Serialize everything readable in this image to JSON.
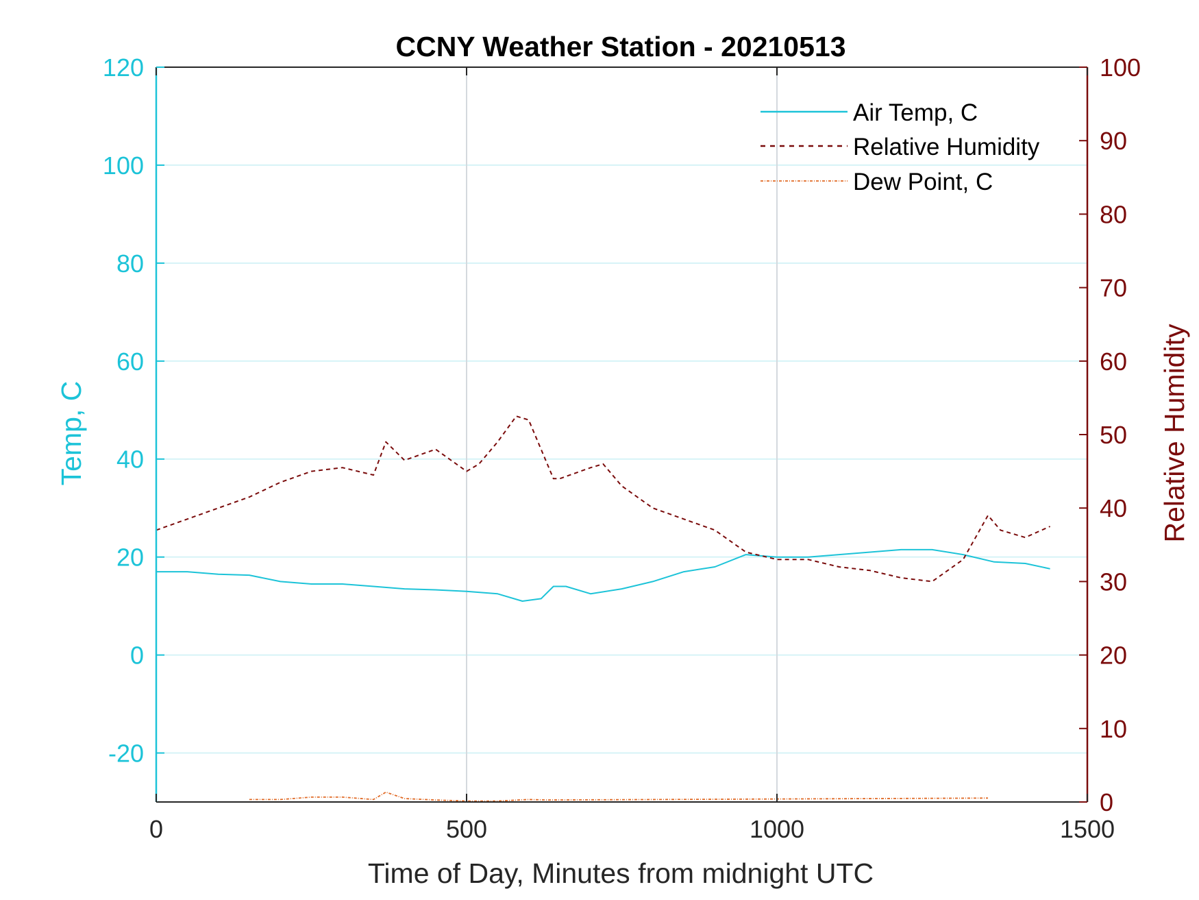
{
  "chart_data": {
    "type": "line",
    "title": "CCNY Weather Station - 20210513",
    "xlabel": "Time of Day, Minutes from midnight UTC",
    "ylabel_left": "Temp, C",
    "ylabel_right": "Relative Humidity",
    "xlim": [
      0,
      1500
    ],
    "ylim_left": [
      -30,
      120
    ],
    "ylim_right": [
      0,
      100
    ],
    "x_ticks": [
      "0",
      "500",
      "1000",
      "1500"
    ],
    "y_left_ticks": [
      "-20",
      "0",
      "20",
      "40",
      "60",
      "80",
      "100",
      "120"
    ],
    "y_right_ticks": [
      "0",
      "10",
      "20",
      "30",
      "40",
      "50",
      "60",
      "70",
      "80",
      "90",
      "100"
    ],
    "grid": true,
    "legend_position": "top-right",
    "colors": {
      "left_axis": "#1cc3d8",
      "right_axis": "#7a0b0b",
      "air_temp": "#1cc3d8",
      "humidity": "#7a0b0b",
      "dew_point": "#e06a26",
      "gridline_horizontal": "#d6f3f7",
      "gridline_vertical": "#d4d9de"
    },
    "series": [
      {
        "name": "Air Temp, C",
        "axis": "left",
        "style": "solid",
        "x": [
          0,
          50,
          100,
          150,
          200,
          250,
          300,
          350,
          400,
          450,
          500,
          550,
          590,
          620,
          640,
          660,
          700,
          750,
          800,
          850,
          900,
          950,
          1000,
          1050,
          1100,
          1150,
          1200,
          1250,
          1300,
          1350,
          1400,
          1440
        ],
        "y": [
          17,
          17,
          16.5,
          16.3,
          15,
          14.5,
          14.5,
          14,
          13.5,
          13.3,
          13,
          12.5,
          11,
          11.5,
          14,
          14,
          12.5,
          13.5,
          15,
          17,
          18,
          20.5,
          20,
          20,
          20.5,
          21,
          21.5,
          21.5,
          20.5,
          19,
          18.7,
          17.6
        ]
      },
      {
        "name": "Relative Humidity",
        "axis": "right",
        "style": "dashed",
        "x": [
          0,
          50,
          100,
          150,
          200,
          250,
          300,
          350,
          370,
          400,
          450,
          500,
          520,
          550,
          580,
          600,
          620,
          640,
          650,
          700,
          720,
          750,
          800,
          850,
          900,
          950,
          1000,
          1050,
          1100,
          1150,
          1200,
          1250,
          1300,
          1340,
          1350,
          1360,
          1400,
          1440
        ],
        "y": [
          37,
          38.5,
          40,
          41.5,
          43.5,
          45,
          45.5,
          44.5,
          49,
          46.5,
          48,
          45,
          46,
          49,
          52.5,
          52,
          48,
          44,
          44,
          45.5,
          46,
          43,
          40,
          38.5,
          37,
          34,
          33,
          33,
          32,
          31.5,
          30.5,
          30,
          33,
          39,
          38,
          37,
          36,
          37.5
        ]
      },
      {
        "name": "Dew Point, C",
        "axis": "left",
        "style": "dash-dot",
        "x": [
          150,
          200,
          250,
          300,
          350,
          370,
          400,
          450,
          500,
          550,
          600,
          630,
          1340
        ],
        "y": [
          -29.5,
          -29.5,
          -29,
          -29,
          -29.5,
          -28,
          -29.3,
          -29.6,
          -29.8,
          -29.8,
          -29.5,
          -29.6,
          -29.2
        ]
      }
    ]
  }
}
